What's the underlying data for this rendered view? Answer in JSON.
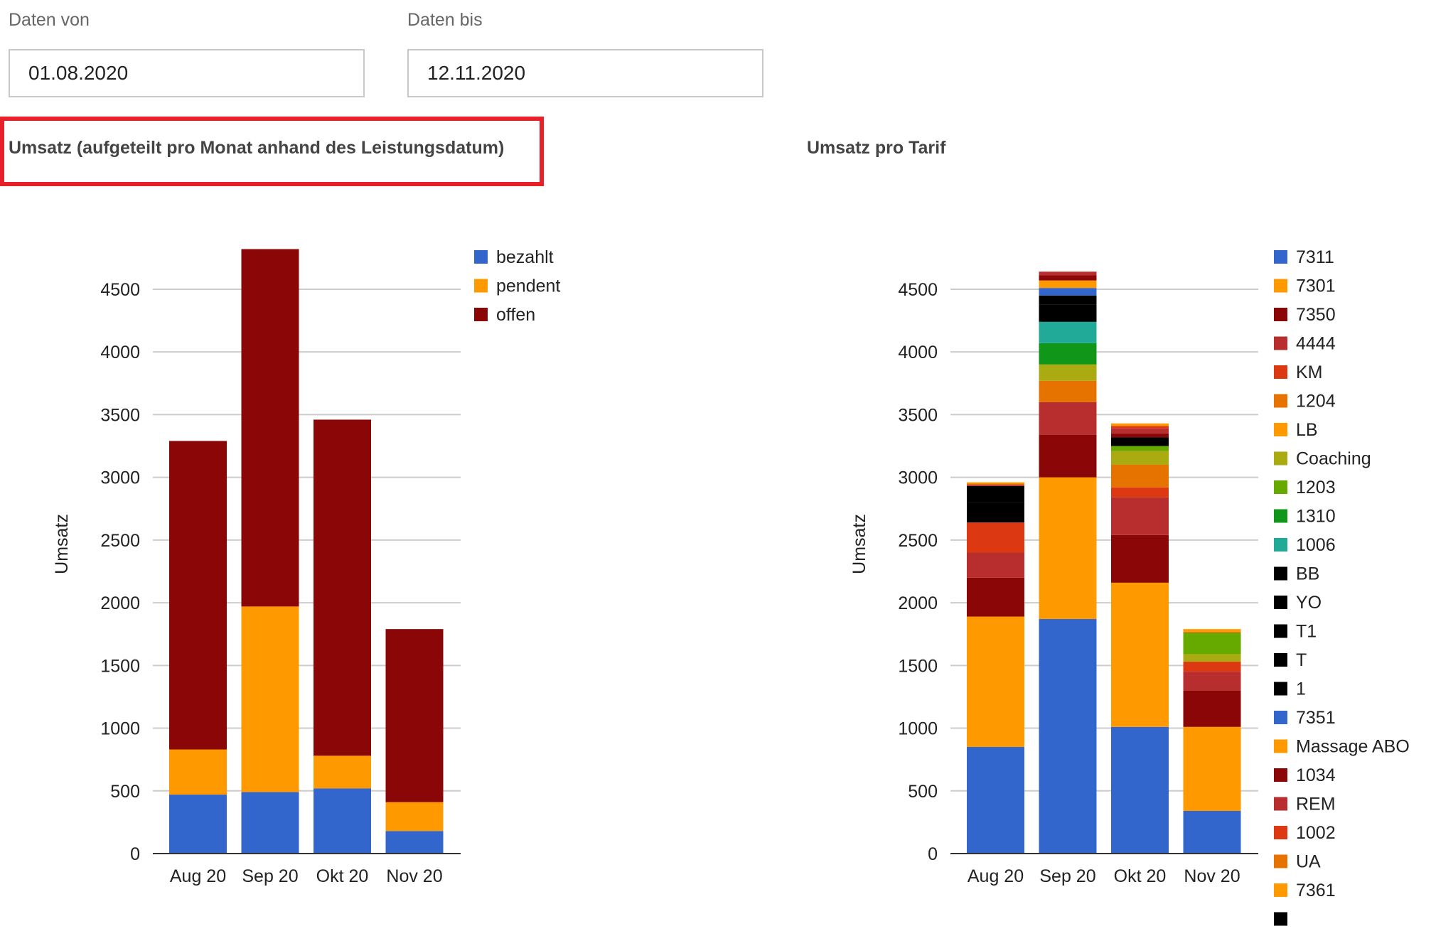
{
  "filters": {
    "from_label": "Daten von",
    "from_value": "01.08.2020",
    "to_label": "Daten bis",
    "to_value": "12.11.2020"
  },
  "colors": {
    "highlight": "#e8202a",
    "grid": "#cccccc",
    "axis": "#333333"
  },
  "chart_data": [
    {
      "type": "bar",
      "stacked": true,
      "title": "Umsatz (aufgeteilt pro Monat anhand des Leistungsdatum)",
      "ylabel": "Umsatz",
      "xlabel": "",
      "ylim": [
        0,
        4800
      ],
      "yticks": [
        0,
        500,
        1000,
        1500,
        2000,
        2500,
        3000,
        3500,
        4000,
        4500
      ],
      "grid": true,
      "legend_position": "right",
      "categories": [
        "Aug 20",
        "Sep 20",
        "Okt 20",
        "Nov 20"
      ],
      "series": [
        {
          "name": "bezahlt",
          "color": "#3366cc",
          "values": [
            470,
            490,
            520,
            180
          ]
        },
        {
          "name": "pendent",
          "color": "#ff9900",
          "values": [
            360,
            1480,
            260,
            230
          ]
        },
        {
          "name": "offen",
          "color": "#8b0707",
          "values": [
            2460,
            2850,
            2680,
            1380
          ]
        }
      ]
    },
    {
      "type": "bar",
      "stacked": true,
      "title": "Umsatz pro Tarif",
      "ylabel": "Umsatz",
      "xlabel": "",
      "ylim": [
        0,
        4800
      ],
      "yticks": [
        0,
        500,
        1000,
        1500,
        2000,
        2500,
        3000,
        3500,
        4000,
        4500
      ],
      "grid": true,
      "legend_position": "right",
      "categories": [
        "Aug 20",
        "Sep 20",
        "Okt 20",
        "Nov 20"
      ],
      "series": [
        {
          "name": "7311",
          "color": "#3366cc",
          "values": [
            850,
            1870,
            1010,
            340
          ]
        },
        {
          "name": "7301",
          "color": "#ff9900",
          "values": [
            1040,
            1130,
            1150,
            670
          ]
        },
        {
          "name": "7350",
          "color": "#8b0707",
          "values": [
            310,
            340,
            380,
            290
          ]
        },
        {
          "name": "4444",
          "color": "#b82e2e",
          "values": [
            200,
            260,
            300,
            150
          ]
        },
        {
          "name": "KM",
          "color": "#dc3912",
          "values": [
            240,
            0,
            80,
            80
          ]
        },
        {
          "name": "1204",
          "color": "#e67300",
          "values": [
            0,
            170,
            180,
            0
          ]
        },
        {
          "name": "LB",
          "color": "#ff9900",
          "values": [
            0,
            0,
            0,
            0
          ]
        },
        {
          "name": "Coaching",
          "color": "#aaaa11",
          "values": [
            0,
            130,
            110,
            60
          ]
        },
        {
          "name": "1203",
          "color": "#66aa00",
          "values": [
            0,
            0,
            40,
            170
          ]
        },
        {
          "name": "1310",
          "color": "#109618",
          "values": [
            0,
            170,
            0,
            0
          ]
        },
        {
          "name": "1006",
          "color": "#22aa99",
          "values": [
            0,
            170,
            0,
            0
          ]
        },
        {
          "name": "BB",
          "color": "#000000",
          "values": [
            160,
            140,
            0,
            0
          ]
        },
        {
          "name": "YO",
          "color": "#000000",
          "values": [
            130,
            70,
            70,
            0
          ]
        },
        {
          "name": "T1",
          "color": "#000000",
          "values": [
            0,
            0,
            0,
            0
          ]
        },
        {
          "name": "T",
          "color": "#000000",
          "values": [
            0,
            0,
            0,
            0
          ]
        },
        {
          "name": "1",
          "color": "#000000",
          "values": [
            0,
            0,
            0,
            0
          ]
        },
        {
          "name": "7351",
          "color": "#3366cc",
          "values": [
            0,
            60,
            0,
            0
          ]
        },
        {
          "name": "Massage ABO",
          "color": "#ff9900",
          "values": [
            0,
            60,
            0,
            0
          ]
        },
        {
          "name": "1034",
          "color": "#8b0707",
          "values": [
            0,
            40,
            30,
            0
          ]
        },
        {
          "name": "REM",
          "color": "#b82e2e",
          "values": [
            10,
            30,
            40,
            0
          ]
        },
        {
          "name": "1002",
          "color": "#dc3912",
          "values": [
            0,
            0,
            20,
            0
          ]
        },
        {
          "name": "UA",
          "color": "#e67300",
          "values": [
            10,
            0,
            0,
            10
          ]
        },
        {
          "name": "7361",
          "color": "#ff9900",
          "values": [
            10,
            0,
            20,
            20
          ]
        },
        {
          "name": "",
          "color": "#000000",
          "values": [
            0,
            0,
            0,
            0
          ]
        }
      ]
    }
  ]
}
